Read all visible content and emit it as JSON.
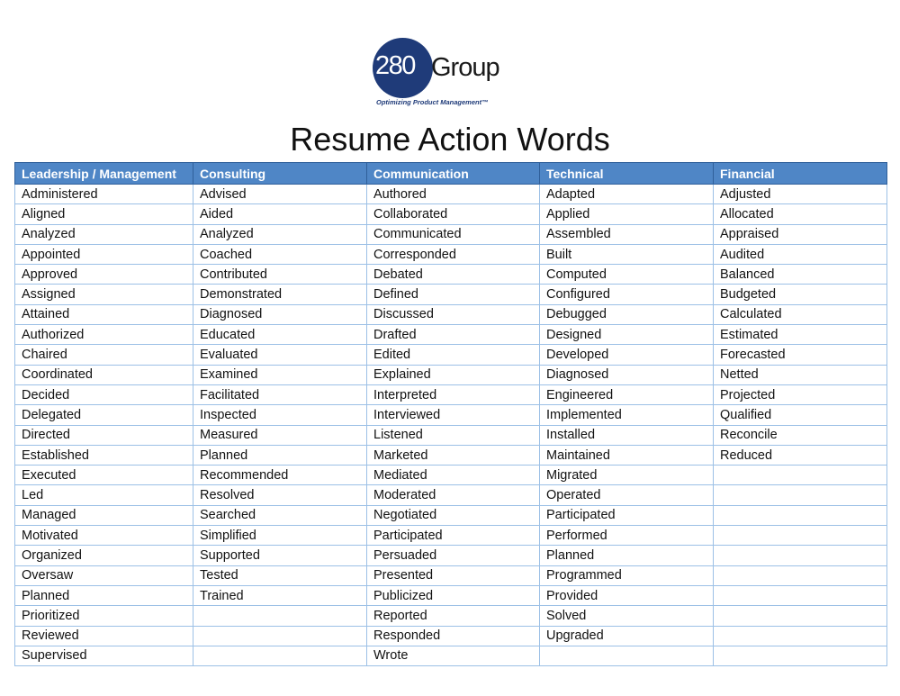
{
  "logo": {
    "number": "280",
    "name": "Group",
    "tagline": "Optimizing Product Management™"
  },
  "title": "Resume Action Words",
  "colors": {
    "header_bg": "#4f86c6",
    "border": "#9cc0e6",
    "logo_blue": "#1f3b79"
  },
  "table": {
    "headers": [
      "Leadership / Management",
      "Consulting",
      "Communication",
      "Technical",
      "Financial"
    ],
    "rows": [
      [
        "Administered",
        "Advised",
        "Authored",
        "Adapted",
        "Adjusted"
      ],
      [
        "Aligned",
        "Aided",
        "Collaborated",
        "Applied",
        "Allocated"
      ],
      [
        "Analyzed",
        "Analyzed",
        "Communicated",
        "Assembled",
        "Appraised"
      ],
      [
        "Appointed",
        "Coached",
        "Corresponded",
        "Built",
        "Audited"
      ],
      [
        "Approved",
        "Contributed",
        "Debated",
        "Computed",
        "Balanced"
      ],
      [
        "Assigned",
        "Demonstrated",
        "Defined",
        "Configured",
        "Budgeted"
      ],
      [
        "Attained",
        "Diagnosed",
        "Discussed",
        "Debugged",
        "Calculated"
      ],
      [
        "Authorized",
        "Educated",
        "Drafted",
        "Designed",
        "Estimated"
      ],
      [
        "Chaired",
        "Evaluated",
        "Edited",
        "Developed",
        "Forecasted"
      ],
      [
        "Coordinated",
        "Examined",
        "Explained",
        "Diagnosed",
        "Netted"
      ],
      [
        "Decided",
        "Facilitated",
        "Interpreted",
        "Engineered",
        "Projected"
      ],
      [
        "Delegated",
        "Inspected",
        "Interviewed",
        "Implemented",
        "Qualified"
      ],
      [
        "Directed",
        "Measured",
        "Listened",
        "Installed",
        "Reconcile"
      ],
      [
        "Established",
        "Planned",
        "Marketed",
        "Maintained",
        "Reduced"
      ],
      [
        "Executed",
        "Recommended",
        "Mediated",
        "Migrated",
        ""
      ],
      [
        "Led",
        "Resolved",
        "Moderated",
        "Operated",
        ""
      ],
      [
        "Managed",
        "Searched",
        "Negotiated",
        "Participated",
        ""
      ],
      [
        "Motivated",
        "Simplified",
        "Participated",
        "Performed",
        ""
      ],
      [
        "Organized",
        "Supported",
        "Persuaded",
        "Planned",
        ""
      ],
      [
        "Oversaw",
        "Tested",
        "Presented",
        "Programmed",
        ""
      ],
      [
        "Planned",
        "Trained",
        "Publicized",
        "Provided",
        ""
      ],
      [
        "Prioritized",
        "",
        "Reported",
        "Solved",
        ""
      ],
      [
        "Reviewed",
        "",
        "Responded",
        "Upgraded",
        ""
      ],
      [
        "Supervised",
        "",
        "Wrote",
        "",
        ""
      ]
    ]
  }
}
